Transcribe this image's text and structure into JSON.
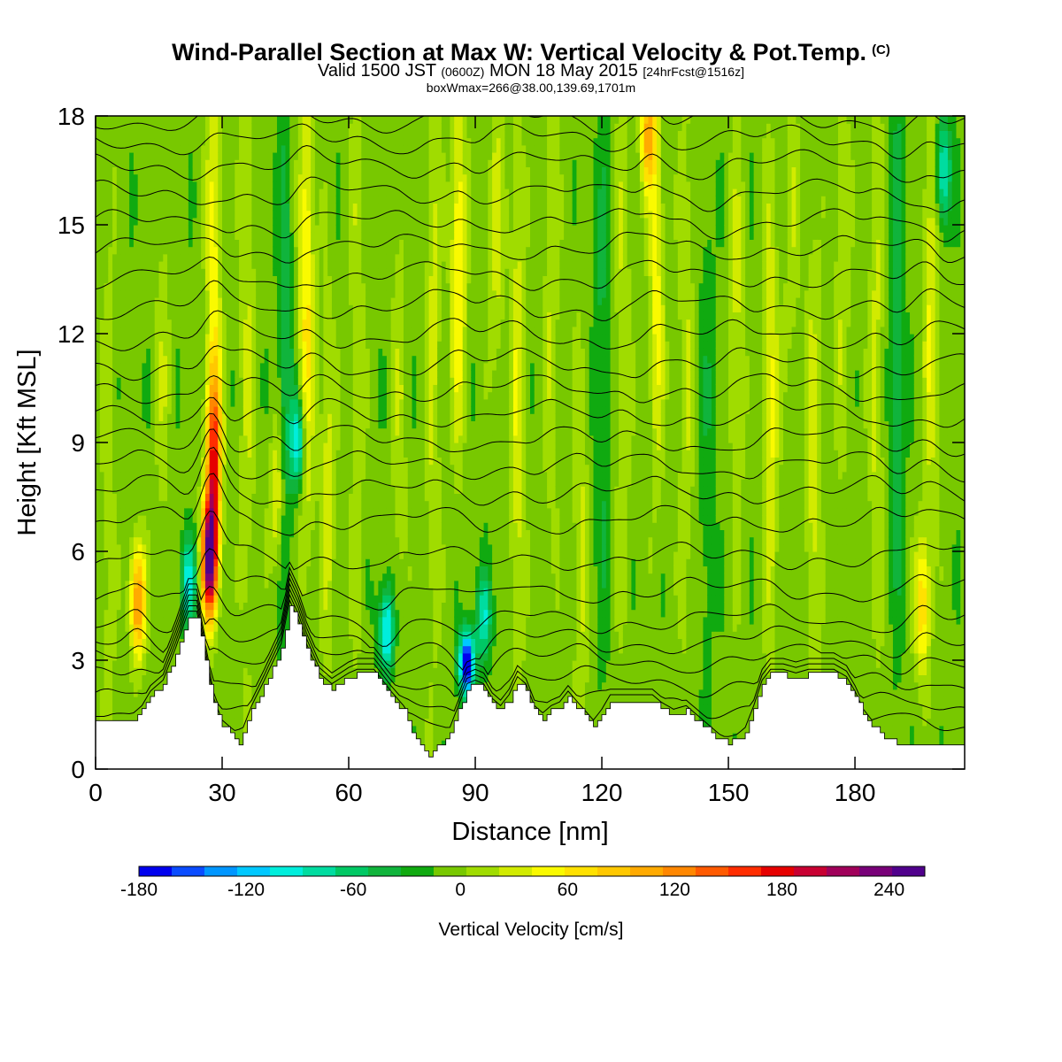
{
  "header": {
    "title": "Wind-Parallel Section at Max W: Vertical Velocity & Pot.Temp.",
    "copyright_mark": "(C)",
    "valid_prefix": "Valid 1500 JST",
    "valid_utc": "(0600Z)",
    "valid_date": "MON 18 May 2015",
    "forecast_info": "[24hrFcst@1516z]",
    "box_info": "boxWmax=266@38.00,139.69,1701m"
  },
  "chart_data": {
    "type": "heatmap",
    "xlabel": "Distance [nm]",
    "ylabel": "Height [Kft MSL]",
    "xlim": [
      0,
      206
    ],
    "ylim": [
      0,
      18
    ],
    "x_ticks": [
      0,
      30,
      60,
      90,
      120,
      150,
      180
    ],
    "y_ticks": [
      0,
      3,
      6,
      9,
      12,
      15,
      18
    ],
    "colorbar": {
      "title": "Vertical Velocity [cm/s]",
      "tick_values": [
        -180,
        -120,
        -60,
        0,
        60,
        120,
        180,
        240
      ],
      "range": [
        -180,
        260
      ],
      "colors": [
        "#0000ee",
        "#0a4cff",
        "#0096ff",
        "#00c8ff",
        "#00eedc",
        "#00dca0",
        "#00c864",
        "#10b43c",
        "#10aa10",
        "#78c800",
        "#a0dc00",
        "#d2eb00",
        "#fafa00",
        "#ffe100",
        "#ffc800",
        "#ffaa00",
        "#ff8700",
        "#ff5a00",
        "#ff2d00",
        "#e60000",
        "#c80032",
        "#a0005a",
        "#780078",
        "#50008c"
      ]
    },
    "terrain": {
      "description_unit": "Kft MSL",
      "x": [
        0,
        4,
        8,
        11,
        13,
        16,
        19,
        22,
        24,
        26,
        28,
        30,
        32,
        34,
        37,
        40,
        44,
        46,
        48,
        50,
        53,
        56,
        60,
        62,
        64,
        66,
        68,
        70,
        73,
        75,
        77,
        79,
        81,
        84,
        86,
        88,
        90,
        92,
        94,
        96,
        98,
        100,
        102,
        104,
        106,
        108,
        110,
        112,
        115,
        118,
        120,
        122,
        125,
        128,
        130,
        132,
        134,
        137,
        140,
        143,
        146,
        148,
        150,
        152,
        154,
        156,
        158,
        160,
        163,
        166,
        169,
        172,
        175,
        178,
        180,
        182,
        184,
        186,
        188,
        190,
        192,
        194,
        196,
        198,
        200,
        202,
        206
      ],
      "y": [
        1.3,
        1.3,
        1.3,
        1.6,
        2.0,
        2.3,
        3.2,
        4.2,
        4.2,
        3.0,
        1.8,
        1.2,
        1.0,
        0.7,
        1.6,
        2.3,
        3.3,
        4.5,
        4.0,
        3.3,
        2.5,
        2.2,
        2.5,
        2.6,
        2.6,
        2.6,
        2.3,
        2.0,
        1.6,
        1.0,
        0.6,
        0.4,
        0.6,
        1.0,
        1.6,
        2.2,
        2.3,
        2.2,
        1.8,
        1.6,
        1.9,
        2.4,
        2.2,
        1.6,
        1.4,
        1.6,
        1.7,
        2.0,
        1.6,
        1.2,
        1.5,
        1.9,
        1.9,
        1.9,
        1.9,
        1.9,
        1.7,
        1.5,
        1.6,
        1.3,
        1.0,
        0.8,
        0.7,
        0.8,
        1.0,
        1.6,
        2.3,
        2.6,
        2.6,
        2.5,
        2.6,
        2.6,
        2.6,
        2.4,
        2.0,
        1.5,
        1.2,
        1.0,
        0.8,
        0.7,
        0.6,
        0.6,
        0.6,
        0.6,
        0.6,
        0.6,
        0.6
      ]
    },
    "vertical_velocity_columns": [
      {
        "x": 3,
        "w": 20,
        "zc": 6,
        "dz": 12
      },
      {
        "x": 10,
        "w": 130,
        "zc": 4.6,
        "dz": 1.6
      },
      {
        "x": 16,
        "w": 25,
        "zc": 11,
        "dz": 5
      },
      {
        "x": 22,
        "w": -90,
        "zc": 5.2,
        "dz": 1.2
      },
      {
        "x": 27,
        "w": 250,
        "zc": 5.8,
        "dz": 1.6
      },
      {
        "x": 28,
        "w": 160,
        "zc": 8.5,
        "dz": 2.5
      },
      {
        "x": 28,
        "w": 55,
        "zc": 14,
        "dz": 6
      },
      {
        "x": 36,
        "w": 30,
        "zc": 12,
        "dz": 10
      },
      {
        "x": 43,
        "w": 55,
        "zc": 7.5,
        "dz": 2
      },
      {
        "x": 45,
        "w": -40,
        "zc": 11,
        "dz": 8
      },
      {
        "x": 48,
        "w": -100,
        "zc": 9,
        "dz": 1.2
      },
      {
        "x": 50,
        "w": 70,
        "zc": 13,
        "dz": 7
      },
      {
        "x": 55,
        "w": 40,
        "zc": 8,
        "dz": 5
      },
      {
        "x": 62,
        "w": 25,
        "zc": 12,
        "dz": 10
      },
      {
        "x": 69,
        "w": -110,
        "zc": 3.8,
        "dz": 1.2
      },
      {
        "x": 72,
        "w": 25,
        "zc": 10,
        "dz": 8
      },
      {
        "x": 80,
        "w": 35,
        "zc": 12,
        "dz": 9
      },
      {
        "x": 86,
        "w": 70,
        "zc": 14,
        "dz": 5
      },
      {
        "x": 88,
        "w": -185,
        "zc": 2.9,
        "dz": 0.9
      },
      {
        "x": 92,
        "w": -80,
        "zc": 4.2,
        "dz": 1.2
      },
      {
        "x": 95,
        "w": 40,
        "zc": 15,
        "dz": 4
      },
      {
        "x": 100,
        "w": 45,
        "zc": 10,
        "dz": 8
      },
      {
        "x": 108,
        "w": 30,
        "zc": 13,
        "dz": 7
      },
      {
        "x": 115,
        "w": 35,
        "zc": 6,
        "dz": 6
      },
      {
        "x": 120,
        "w": -30,
        "zc": 11,
        "dz": 8
      },
      {
        "x": 125,
        "w": 30,
        "zc": 12,
        "dz": 8
      },
      {
        "x": 131,
        "w": 110,
        "zc": 17.5,
        "dz": 1.6
      },
      {
        "x": 133,
        "w": 55,
        "zc": 13,
        "dz": 5
      },
      {
        "x": 140,
        "w": 30,
        "zc": 11,
        "dz": 8
      },
      {
        "x": 145,
        "w": -20,
        "zc": 9,
        "dz": 10
      },
      {
        "x": 152,
        "w": 35,
        "zc": 12,
        "dz": 6
      },
      {
        "x": 160,
        "w": 55,
        "zc": 10,
        "dz": 6
      },
      {
        "x": 165,
        "w": 25,
        "zc": 15,
        "dz": 5
      },
      {
        "x": 170,
        "w": 40,
        "zc": 8,
        "dz": 7
      },
      {
        "x": 177,
        "w": 30,
        "zc": 14,
        "dz": 6
      },
      {
        "x": 185,
        "w": 35,
        "zc": 11,
        "dz": 8
      },
      {
        "x": 190,
        "w": -40,
        "zc": 12,
        "dz": 8
      },
      {
        "x": 196,
        "w": 80,
        "zc": 4.5,
        "dz": 2
      },
      {
        "x": 198,
        "w": 50,
        "zc": 13,
        "dz": 6
      },
      {
        "x": 201,
        "w": -90,
        "zc": 16.5,
        "dz": 1.5
      }
    ],
    "potential_temperature_isentropes": {
      "count": 24,
      "base_height_kft": [
        1.2,
        1.8,
        2.4,
        3.0,
        3.5,
        4.1,
        4.9,
        5.8,
        6.8,
        7.6,
        8.3,
        9.0,
        9.7,
        10.4,
        11.1,
        11.9,
        12.7,
        13.5,
        14.3,
        15.0,
        15.8,
        16.6,
        17.3,
        17.9
      ]
    }
  }
}
